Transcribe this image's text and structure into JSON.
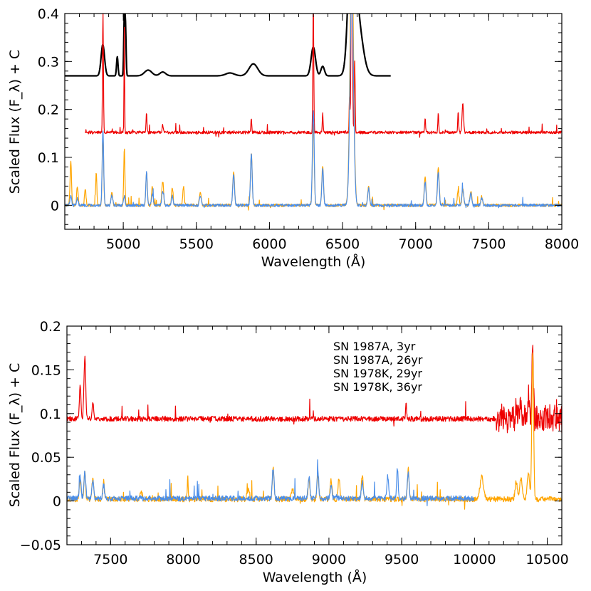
{
  "chart_data": [
    {
      "type": "line",
      "panel": "top",
      "xlabel": "Wavelength (Å)",
      "ylabel": "Scaled Flux (F_λ) + C",
      "xlim": [
        4600,
        8000
      ],
      "ylim": [
        -0.05,
        0.4
      ],
      "xticks": [
        "5000",
        "5500",
        "6000",
        "6500",
        "7000",
        "7500",
        "8000"
      ],
      "yticks": [
        "0",
        "0.1",
        "0.2",
        "0.3",
        "0.4"
      ],
      "series": [
        {
          "name": "SN 1987A, 3yr",
          "color": "#000000",
          "range": [
            4600,
            6830
          ],
          "offset": 0.27,
          "lines": [
            [
              4860,
              0.065,
              12
            ],
            [
              4959,
              0.04,
              5
            ],
            [
              5007,
              0.12,
              4
            ],
            [
              5015,
              0.1,
              4
            ],
            [
              5170,
              0.012,
              25
            ],
            [
              5270,
              0.008,
              20
            ],
            [
              5730,
              0.006,
              30
            ],
            [
              5890,
              0.025,
              30
            ],
            [
              6300,
              0.06,
              15
            ],
            [
              6364,
              0.02,
              12
            ],
            [
              6563,
              0.3,
              22
            ],
            [
              6600,
              0.12,
              35
            ]
          ]
        },
        {
          "name": "SN 1987A, 26yr",
          "color": "#ee0000",
          "range": [
            4740,
            8000
          ],
          "offset": 0.152,
          "lines": [
            [
              4861,
              0.25,
              3
            ],
            [
              5007,
              0.22,
              2
            ],
            [
              5159,
              0.04,
              3
            ],
            [
              5270,
              0.015,
              4
            ],
            [
              5876,
              0.03,
              3
            ],
            [
              6300,
              0.28,
              3
            ],
            [
              6364,
              0.04,
              3
            ],
            [
              6548,
              0.08,
              3
            ],
            [
              6563,
              0.6,
              4
            ],
            [
              6583,
              0.15,
              3
            ],
            [
              7065,
              0.03,
              3
            ],
            [
              7155,
              0.04,
              3
            ],
            [
              7291,
              0.045,
              3
            ],
            [
              7323,
              0.06,
              5
            ]
          ]
        },
        {
          "name": "SN 1978K, 29yr",
          "color": "#ffa500",
          "range": [
            4600,
            8000
          ],
          "offset": 0,
          "lines": [
            [
              4641,
              0.09,
              5
            ],
            [
              4686,
              0.04,
              5
            ],
            [
              4740,
              0.035,
              5
            ],
            [
              4815,
              0.07,
              4
            ],
            [
              4861,
              0.15,
              5
            ],
            [
              4922,
              0.03,
              5
            ],
            [
              5007,
              0.12,
              4
            ],
            [
              5159,
              0.07,
              5
            ],
            [
              5199,
              0.04,
              5
            ],
            [
              5270,
              0.05,
              6
            ],
            [
              5335,
              0.035,
              5
            ],
            [
              5412,
              0.04,
              5
            ],
            [
              5527,
              0.03,
              6
            ],
            [
              5755,
              0.07,
              6
            ],
            [
              5876,
              0.11,
              6
            ],
            [
              6300,
              0.17,
              6
            ],
            [
              6364,
              0.08,
              6
            ],
            [
              6563,
              0.55,
              12
            ],
            [
              6678,
              0.04,
              6
            ],
            [
              7065,
              0.06,
              6
            ],
            [
              7155,
              0.08,
              6
            ],
            [
              7291,
              0.03,
              6
            ],
            [
              7323,
              0.035,
              6
            ],
            [
              7378,
              0.03,
              6
            ],
            [
              7452,
              0.02,
              6
            ]
          ]
        },
        {
          "name": "SN 1978K, 36yr",
          "color": "#4b8ee8",
          "range": [
            4600,
            8000
          ],
          "offset": 0,
          "lines": [
            [
              4641,
              0.02,
              6
            ],
            [
              4686,
              0.015,
              6
            ],
            [
              4861,
              0.16,
              5
            ],
            [
              4922,
              0.02,
              6
            ],
            [
              5007,
              0.02,
              5
            ],
            [
              5159,
              0.07,
              5
            ],
            [
              5199,
              0.025,
              6
            ],
            [
              5270,
              0.03,
              6
            ],
            [
              5335,
              0.02,
              6
            ],
            [
              5527,
              0.02,
              6
            ],
            [
              5755,
              0.065,
              6
            ],
            [
              5876,
              0.11,
              6
            ],
            [
              6300,
              0.2,
              6
            ],
            [
              6364,
              0.075,
              6
            ],
            [
              6563,
              0.45,
              12
            ],
            [
              6678,
              0.035,
              6
            ],
            [
              7065,
              0.05,
              6
            ],
            [
              7155,
              0.07,
              6
            ],
            [
              7323,
              0.03,
              7
            ],
            [
              7378,
              0.025,
              6
            ],
            [
              7452,
              0.015,
              6
            ]
          ]
        }
      ]
    },
    {
      "type": "line",
      "panel": "bottom",
      "xlabel": "Wavelength (Å)",
      "ylabel": "Scaled Flux (F_λ) + C",
      "xlim": [
        7200,
        10600
      ],
      "ylim": [
        -0.05,
        0.2
      ],
      "xticks": [
        "7500",
        "8000",
        "8500",
        "9000",
        "9500",
        "10000",
        "10500"
      ],
      "yticks": [
        "−0.05",
        "0",
        "0.05",
        "0.1",
        "0.15",
        "0.2"
      ],
      "legend": {
        "position": "top-center",
        "entries": [
          {
            "label": "SN 1987A, 3yr",
            "color": "#000000"
          },
          {
            "label": "SN 1987A, 26yr",
            "color": "#ee0000"
          },
          {
            "label": "SN 1978K, 29yr",
            "color": "#ffa500"
          },
          {
            "label": "SN 1978K, 36yr",
            "color": "#4b8ee8"
          }
        ]
      },
      "series": [
        {
          "name": "SN 1987A, 26yr",
          "color": "#ee0000",
          "range": [
            7200,
            10600
          ],
          "offset": 0.094,
          "lines": [
            [
              7291,
              0.04,
              5
            ],
            [
              7323,
              0.07,
              6
            ],
            [
              7378,
              0.02,
              5
            ],
            [
              9530,
              0.02,
              3
            ],
            [
              10287,
              0.015,
              5
            ],
            [
              10320,
              0.02,
              5
            ],
            [
              10370,
              0.03,
              5
            ],
            [
              10400,
              0.085,
              5
            ]
          ]
        },
        {
          "name": "SN 1978K, 29yr",
          "color": "#ffa500",
          "range": [
            7200,
            10600
          ],
          "offset": 0.002,
          "lines": [
            [
              7291,
              0.02,
              6
            ],
            [
              7323,
              0.03,
              6
            ],
            [
              7378,
              0.025,
              6
            ],
            [
              7452,
              0.02,
              6
            ],
            [
              7710,
              0.008,
              8
            ],
            [
              8030,
              0.028,
              3
            ],
            [
              8446,
              0.012,
              8
            ],
            [
              8617,
              0.035,
              6
            ],
            [
              8750,
              0.012,
              8
            ],
            [
              8863,
              0.022,
              6
            ],
            [
              8924,
              0.028,
              6
            ],
            [
              9015,
              0.022,
              6
            ],
            [
              9069,
              0.025,
              6
            ],
            [
              9229,
              0.028,
              6
            ],
            [
              9545,
              0.035,
              6
            ],
            [
              10050,
              0.025,
              12
            ],
            [
              10287,
              0.02,
              8
            ],
            [
              10320,
              0.025,
              8
            ],
            [
              10370,
              0.03,
              8
            ],
            [
              10400,
              0.17,
              6
            ]
          ]
        },
        {
          "name": "SN 1978K, 36yr",
          "color": "#4b8ee8",
          "range": [
            7200,
            10000
          ],
          "offset": 0.003,
          "lines": [
            [
              7291,
              0.025,
              6
            ],
            [
              7323,
              0.03,
              6
            ],
            [
              7378,
              0.02,
              6
            ],
            [
              7452,
              0.015,
              6
            ],
            [
              8617,
              0.035,
              6
            ],
            [
              8863,
              0.025,
              6
            ],
            [
              8924,
              0.03,
              6
            ],
            [
              9015,
              0.015,
              6
            ],
            [
              9229,
              0.02,
              6
            ],
            [
              9404,
              0.025,
              6
            ],
            [
              9470,
              0.035,
              5
            ],
            [
              9545,
              0.03,
              6
            ]
          ]
        }
      ]
    }
  ]
}
